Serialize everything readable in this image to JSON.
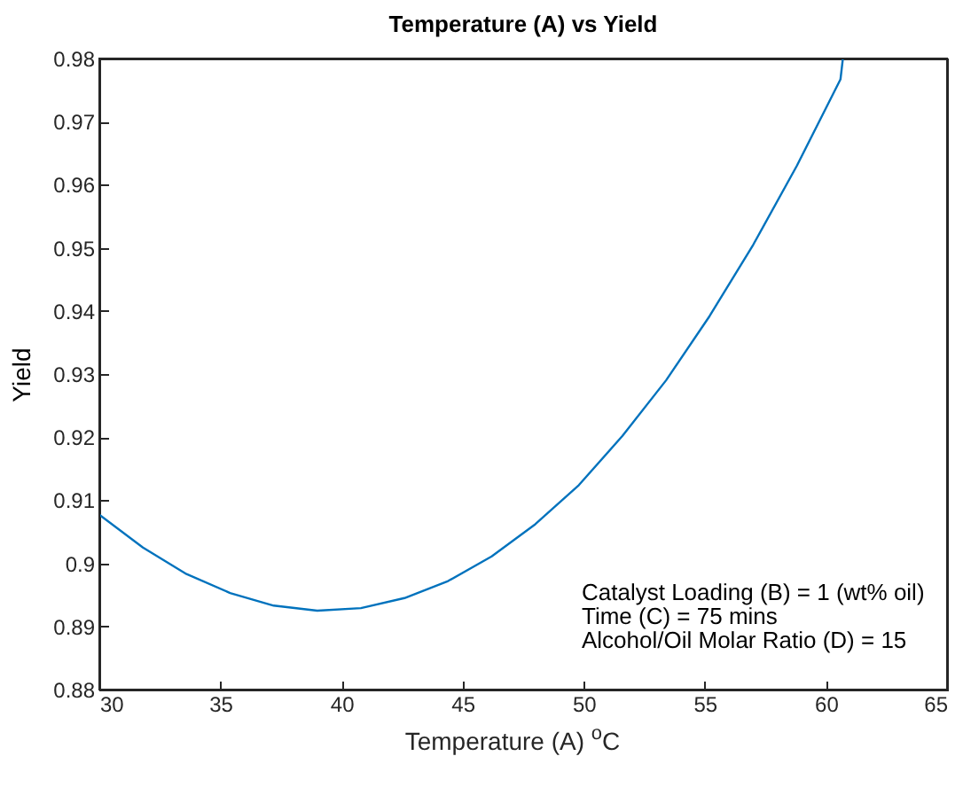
{
  "chart_data": {
    "type": "line",
    "title": "Temperature (A) vs Yield",
    "xlabel": "Temperature (A) $^{o}$C",
    "ylabel": "Yield",
    "x": [
      30,
      31.8,
      33.6,
      35.4,
      37.2,
      39,
      40.8,
      42.6,
      44.4,
      46.2,
      48,
      49.8,
      51.6,
      53.4,
      55.2,
      57,
      58.8,
      60.6,
      60.7
    ],
    "series": [
      {
        "color": "#0072bd",
        "values": [
          0.9077,
          0.9025,
          0.8983,
          0.8953,
          0.8933,
          0.8925,
          0.8929,
          0.8945,
          0.8972,
          0.9011,
          0.9062,
          0.9124,
          0.9202,
          0.929,
          0.9392,
          0.9505,
          0.963,
          0.9767,
          0.98
        ]
      }
    ],
    "xlim": [
      30,
      65
    ],
    "xticks": [
      30,
      35,
      40,
      45,
      50,
      55,
      60,
      65
    ],
    "ylim": [
      0.88,
      0.98
    ],
    "yticks": [
      0.88,
      0.89,
      0.9,
      0.91,
      0.92,
      0.93,
      0.94,
      0.95,
      0.96,
      0.97,
      0.98
    ],
    "annotations": [
      "Catalyst Loading (B) = 1 (wt% oil)",
      "Time (C) = 75 mins",
      "Alcohol/Oil Molar Ratio (D) = 15"
    ],
    "grid": false,
    "legend": false
  }
}
